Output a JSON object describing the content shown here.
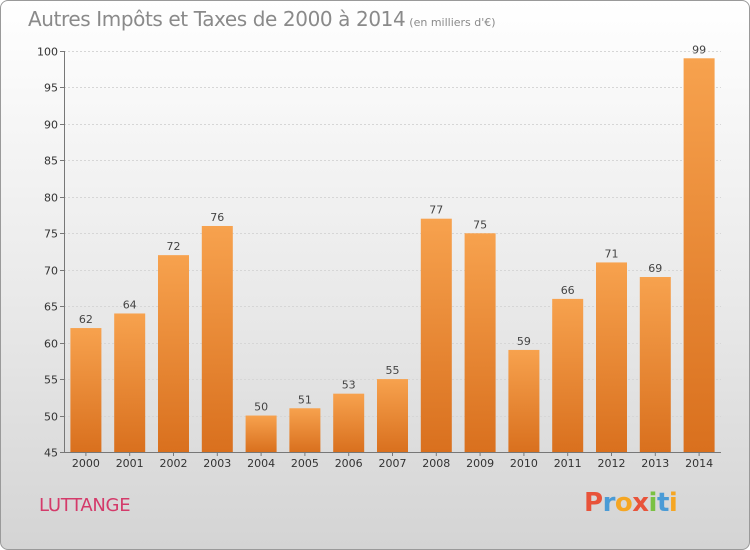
{
  "chart_data": {
    "type": "bar",
    "title": "Autres Impôts et Taxes de 2000 à 2014",
    "subtitle": "(en milliers d'€)",
    "categories": [
      "2000",
      "2001",
      "2002",
      "2003",
      "2004",
      "2005",
      "2006",
      "2007",
      "2008",
      "2009",
      "2010",
      "2011",
      "2012",
      "2013",
      "2014"
    ],
    "values": [
      62,
      64,
      72,
      76,
      50,
      51,
      53,
      55,
      77,
      75,
      59,
      66,
      71,
      69,
      99
    ],
    "ylim": [
      45,
      100
    ],
    "yticks": [
      45,
      50,
      55,
      60,
      65,
      70,
      75,
      80,
      85,
      90,
      95,
      100
    ],
    "grid": true,
    "bar_color": "#f0903a"
  },
  "footer": {
    "place_name": "LUTTANGE",
    "logo_text": "Proxiti"
  },
  "colors": {
    "title": "#8a8a8a",
    "place": "#d43a6a",
    "logo": [
      "#e8533a",
      "#4a9bd6",
      "#f5a623",
      "#e8533a",
      "#7ac143",
      "#4a9bd6",
      "#f5a623"
    ]
  }
}
